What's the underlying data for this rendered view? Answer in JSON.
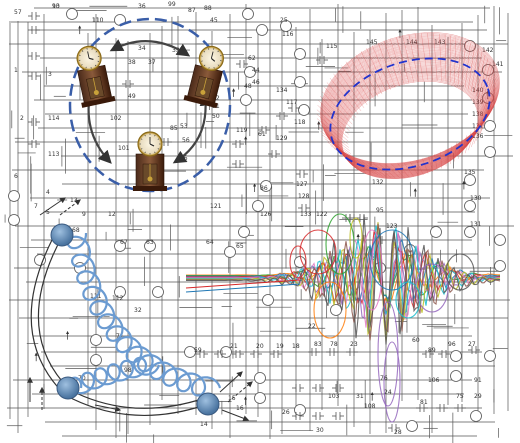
{
  "colors": {
    "wire": "#555555",
    "clock_ring": "#3a5ea8",
    "ring3d": "#d94a4a",
    "ring_dash": "#2233cc",
    "spring": "#6b9bd1",
    "node": "#5f88b3",
    "track": "#333333",
    "noise": [
      "#ff7f0e",
      "#2ca02c",
      "#1f77b4",
      "#d62728",
      "#9467bd",
      "#e377c2",
      "#17becf",
      "#bcbd22",
      "#8c564b",
      "#555555"
    ]
  },
  "clocks": [
    {
      "name": "clock-top-left"
    },
    {
      "name": "clock-top-right"
    },
    {
      "name": "clock-bottom"
    }
  ],
  "labels": [
    {
      "t": "93"
    },
    {
      "t": "110"
    },
    {
      "t": "36"
    },
    {
      "t": "99"
    },
    {
      "t": "87"
    },
    {
      "t": "88"
    },
    {
      "t": "45"
    },
    {
      "t": "34"
    },
    {
      "t": "33"
    },
    {
      "t": "38"
    },
    {
      "t": "37"
    },
    {
      "t": "49"
    },
    {
      "t": "84"
    },
    {
      "t": "52"
    },
    {
      "t": "51"
    },
    {
      "t": "50"
    },
    {
      "t": "53"
    },
    {
      "t": "102"
    },
    {
      "t": "101"
    },
    {
      "t": "114"
    },
    {
      "t": "113"
    },
    {
      "t": "2"
    },
    {
      "t": "3"
    },
    {
      "t": "6"
    },
    {
      "t": "7"
    },
    {
      "t": "68"
    },
    {
      "t": "67"
    },
    {
      "t": "63"
    },
    {
      "t": "64"
    },
    {
      "t": "65"
    },
    {
      "t": "111"
    },
    {
      "t": "112"
    },
    {
      "t": "32"
    },
    {
      "t": "71"
    },
    {
      "t": "98"
    },
    {
      "t": "70"
    },
    {
      "t": "69"
    },
    {
      "t": "15"
    },
    {
      "t": "16"
    },
    {
      "t": "14"
    },
    {
      "t": "59"
    },
    {
      "t": "21"
    },
    {
      "t": "20"
    },
    {
      "t": "19"
    },
    {
      "t": "18"
    },
    {
      "t": "83"
    },
    {
      "t": "78"
    },
    {
      "t": "23"
    },
    {
      "t": "22"
    },
    {
      "t": "60"
    },
    {
      "t": "89"
    },
    {
      "t": "96"
    },
    {
      "t": "27"
    },
    {
      "t": "76"
    },
    {
      "t": "106"
    },
    {
      "t": "91"
    },
    {
      "t": "24"
    },
    {
      "t": "103"
    },
    {
      "t": "31"
    },
    {
      "t": "26"
    },
    {
      "t": "81"
    },
    {
      "t": "75"
    },
    {
      "t": "29"
    },
    {
      "t": "28"
    },
    {
      "t": "108"
    },
    {
      "t": "30"
    },
    {
      "t": "25"
    },
    {
      "t": "116"
    },
    {
      "t": "115"
    },
    {
      "t": "145"
    },
    {
      "t": "144"
    },
    {
      "t": "143"
    },
    {
      "t": "142"
    },
    {
      "t": "141"
    },
    {
      "t": "140"
    },
    {
      "t": "139"
    },
    {
      "t": "138"
    },
    {
      "t": "137"
    },
    {
      "t": "136"
    },
    {
      "t": "135"
    },
    {
      "t": "134"
    },
    {
      "t": "117"
    },
    {
      "t": "118"
    },
    {
      "t": "129"
    },
    {
      "t": "127"
    },
    {
      "t": "128"
    },
    {
      "t": "130"
    },
    {
      "t": "131"
    },
    {
      "t": "132"
    },
    {
      "t": "133"
    },
    {
      "t": "122"
    },
    {
      "t": "123"
    },
    {
      "t": "95"
    },
    {
      "t": "121"
    },
    {
      "t": "126"
    },
    {
      "t": "119"
    },
    {
      "t": "61"
    },
    {
      "t": "86"
    },
    {
      "t": "62"
    },
    {
      "t": "44"
    },
    {
      "t": "46"
    },
    {
      "t": "48"
    },
    {
      "t": "85"
    },
    {
      "t": "56"
    },
    {
      "t": "55"
    },
    {
      "t": "57"
    },
    {
      "t": "1"
    },
    {
      "t": "4"
    },
    {
      "t": "5"
    },
    {
      "t": "9"
    },
    {
      "t": "12"
    },
    {
      "t": "13"
    },
    {
      "t": "10"
    },
    {
      "t": "11"
    }
  ]
}
